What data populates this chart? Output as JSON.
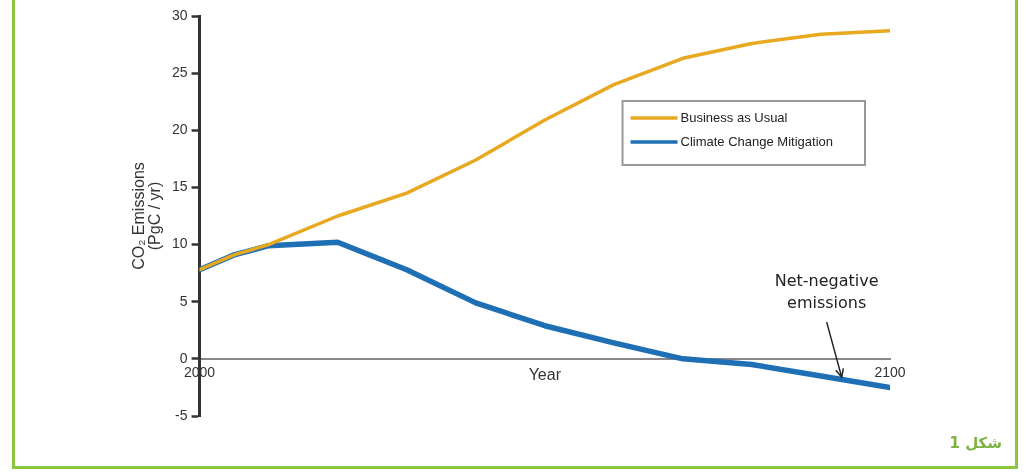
{
  "chart_data": {
    "type": "line",
    "xlabel": "Year",
    "ylabel": "CO₂ Emissions (PgC / yr)",
    "x": [
      2000,
      2005,
      2010,
      2020,
      2030,
      2040,
      2050,
      2060,
      2070,
      2080,
      2090,
      2100
    ],
    "series": [
      {
        "name": "Business as Usual",
        "color": "#e8a820",
        "values": [
          7.8,
          9.1,
          10.0,
          12.5,
          14.5,
          17.4,
          20.9,
          24.0,
          26.3,
          27.6,
          28.4,
          28.7
        ]
      },
      {
        "name": "Climate Change Mitigation",
        "color": "#1f6fb4",
        "values": [
          7.8,
          9.1,
          9.9,
          10.2,
          7.8,
          4.9,
          2.9,
          1.4,
          0,
          -0.5,
          -1.5,
          -2.5
        ]
      }
    ],
    "xlim": [
      2000,
      2100
    ],
    "xticks": [
      2000,
      2100
    ],
    "ylim": [
      -5,
      30
    ],
    "yticks": [
      -5,
      0,
      5,
      10,
      15,
      20,
      25,
      30
    ],
    "grid": false,
    "legend": "top right",
    "marker": "none",
    "line_style": "solid",
    "annotations": [
      {
        "text": "Net-negative emissions",
        "x": 2093,
        "y": -1.6
      },
      "شکل 1"
    ]
  }
}
